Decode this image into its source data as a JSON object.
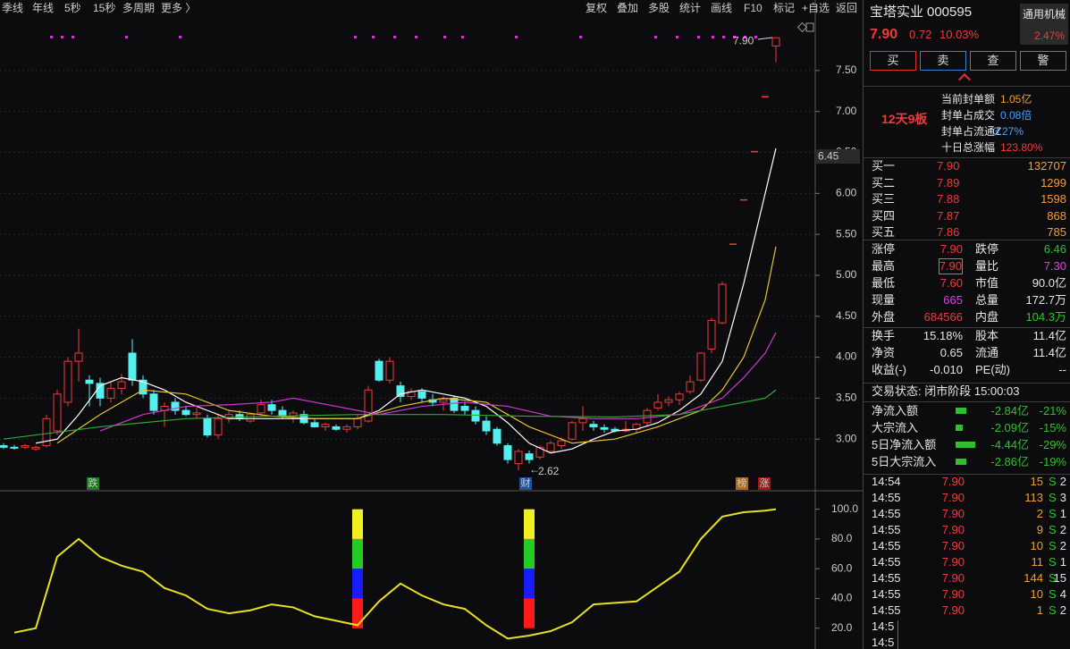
{
  "toolbar": {
    "left": [
      "季线",
      "年线",
      "5秒",
      "15秒",
      "多周期",
      "更多 〉"
    ],
    "right": [
      "复权",
      "叠加",
      "多股",
      "统计",
      "画线",
      "F10",
      "标记",
      "+自选",
      "返回"
    ]
  },
  "chart_data": [
    {
      "type": "candlestick",
      "ylim": [
        2.38,
        7.99
      ],
      "yticks": [
        {
          "value": 3,
          "label": "3.00"
        },
        {
          "value": 3.5,
          "label": "3.50"
        },
        {
          "value": 4,
          "label": "4.00"
        },
        {
          "value": 4.5,
          "label": "4.50"
        },
        {
          "value": 5,
          "label": "5.00"
        },
        {
          "value": 5.5,
          "label": "5.50"
        },
        {
          "value": 6,
          "label": "6.00"
        },
        {
          "value": 6.5,
          "label": "6.50"
        },
        {
          "value": 7,
          "label": "7.00"
        },
        {
          "value": 7.5,
          "label": "7.50"
        }
      ],
      "grid": true,
      "up_color": "#f03a3a",
      "down_color": "#54f0f0",
      "candles": [
        [
          2.92,
          2.95,
          2.88,
          2.9
        ],
        [
          2.9,
          2.93,
          2.87,
          2.89
        ],
        [
          2.9,
          2.94,
          2.88,
          2.92
        ],
        [
          2.88,
          2.92,
          2.86,
          2.9
        ],
        [
          2.92,
          3.3,
          2.9,
          3.25
        ],
        [
          3.1,
          3.6,
          3.05,
          3.55
        ],
        [
          3.45,
          4,
          3.4,
          3.95
        ],
        [
          3.95,
          4.35,
          3.7,
          4.05
        ],
        [
          3.72,
          3.78,
          3.4,
          3.68
        ],
        [
          3.68,
          3.75,
          3.4,
          3.5
        ],
        [
          3.5,
          3.7,
          3.45,
          3.62
        ],
        [
          3.62,
          3.8,
          3.55,
          3.7
        ],
        [
          4.05,
          4.22,
          3.65,
          3.72
        ],
        [
          3.72,
          3.78,
          3.5,
          3.55
        ],
        [
          3.55,
          3.6,
          3.3,
          3.35
        ],
        [
          3.35,
          3.45,
          3.15,
          3.4
        ],
        [
          3.45,
          3.5,
          3.3,
          3.35
        ],
        [
          3.35,
          3.4,
          3.28,
          3.3
        ],
        [
          3.3,
          3.38,
          3.25,
          3.32
        ],
        [
          3.25,
          3.3,
          3.02,
          3.05
        ],
        [
          3.05,
          3.3,
          3,
          3.25
        ],
        [
          3.25,
          3.35,
          3.2,
          3.3
        ],
        [
          3.3,
          3.35,
          3.22,
          3.25
        ],
        [
          3.22,
          3.32,
          3.2,
          3.3
        ],
        [
          3.32,
          3.48,
          3.28,
          3.42
        ],
        [
          3.42,
          3.48,
          3.3,
          3.35
        ],
        [
          3.35,
          3.4,
          3.25,
          3.28
        ],
        [
          3.28,
          3.35,
          3.2,
          3.32
        ],
        [
          3.3,
          3.35,
          3.18,
          3.2
        ],
        [
          3.2,
          3.25,
          3.14,
          3.15
        ],
        [
          3.15,
          3.2,
          3.1,
          3.18
        ],
        [
          3.15,
          3.18,
          3.1,
          3.12
        ],
        [
          3.12,
          3.18,
          3.08,
          3.15
        ],
        [
          3.15,
          3.3,
          3.12,
          3.25
        ],
        [
          3.22,
          3.65,
          3.2,
          3.6
        ],
        [
          3.95,
          3.98,
          3.7,
          3.72
        ],
        [
          3.72,
          4,
          3.68,
          3.95
        ],
        [
          3.65,
          3.7,
          3.45,
          3.52
        ],
        [
          3.52,
          3.62,
          3.48,
          3.58
        ],
        [
          3.58,
          3.62,
          3.45,
          3.5
        ],
        [
          3.48,
          3.55,
          3.4,
          3.45
        ],
        [
          3.45,
          3.52,
          3.35,
          3.48
        ],
        [
          3.5,
          3.52,
          3.32,
          3.35
        ],
        [
          3.4,
          3.45,
          3.3,
          3.35
        ],
        [
          3.35,
          3.4,
          3.18,
          3.22
        ],
        [
          3.22,
          3.28,
          3.05,
          3.1
        ],
        [
          3.12,
          3.15,
          2.92,
          2.95
        ],
        [
          2.92,
          2.95,
          2.7,
          2.75
        ],
        [
          2.7,
          2.88,
          2.62,
          2.85
        ],
        [
          2.82,
          2.86,
          2.7,
          2.75
        ],
        [
          2.78,
          2.92,
          2.75,
          2.9
        ],
        [
          2.85,
          2.98,
          2.82,
          2.95
        ],
        [
          2.92,
          3.02,
          2.88,
          2.98
        ],
        [
          3,
          3.22,
          2.98,
          3.2
        ],
        [
          3.2,
          3.4,
          3.1,
          3.25
        ],
        [
          3.18,
          3.22,
          3.1,
          3.15
        ],
        [
          3.14,
          3.18,
          3.08,
          3.12
        ],
        [
          3.12,
          3.15,
          3.08,
          3.1
        ],
        [
          3.1,
          3.22,
          3.08,
          3.12
        ],
        [
          3.12,
          3.2,
          3.08,
          3.18
        ],
        [
          3.2,
          3.38,
          3.15,
          3.35
        ],
        [
          3.38,
          3.55,
          3.35,
          3.45
        ],
        [
          3.45,
          3.52,
          3.4,
          3.48
        ],
        [
          3.48,
          3.58,
          3.42,
          3.55
        ],
        [
          3.58,
          3.78,
          3.55,
          3.7
        ],
        [
          3.72,
          4.06,
          3.7,
          4.05
        ],
        [
          4.1,
          4.48,
          4.05,
          4.45
        ],
        [
          4.42,
          4.92,
          4.4,
          4.89
        ],
        [
          5.38,
          5.38,
          5.38,
          5.38
        ],
        [
          5.92,
          5.92,
          5.92,
          5.92
        ],
        [
          6.51,
          6.51,
          6.51,
          6.51
        ],
        [
          7.18,
          7.18,
          7.18,
          7.18
        ],
        [
          7.8,
          7.9,
          7.6,
          7.9
        ]
      ],
      "series": [
        {
          "color": "#ffffff",
          "x": [
            3,
            5,
            7,
            9,
            11,
            13,
            15,
            17,
            19,
            21,
            25,
            29,
            33,
            35,
            37,
            39,
            41,
            43,
            45,
            47,
            49,
            51,
            53,
            55,
            57,
            59,
            61,
            63,
            65,
            67,
            69,
            71,
            72
          ],
          "values": [
            2.95,
            3,
            3.3,
            3.65,
            3.75,
            3.7,
            3.6,
            3.45,
            3.35,
            3.25,
            3.25,
            3.25,
            3.25,
            3.35,
            3.55,
            3.6,
            3.55,
            3.5,
            3.4,
            3.2,
            2.95,
            2.83,
            2.88,
            3,
            3.1,
            3.12,
            3.2,
            3.35,
            3.55,
            3.95,
            4.9,
            6,
            6.55
          ]
        },
        {
          "color": "#e6c42a",
          "x": [
            5,
            9,
            13,
            17,
            21,
            25,
            29,
            33,
            37,
            41,
            45,
            49,
            53,
            57,
            61,
            65,
            67,
            69,
            71,
            72
          ],
          "values": [
            2.95,
            3.3,
            3.6,
            3.55,
            3.35,
            3.28,
            3.25,
            3.25,
            3.4,
            3.5,
            3.45,
            3.15,
            2.95,
            3,
            3.15,
            3.35,
            3.6,
            4,
            4.7,
            5.35
          ]
        },
        {
          "color": "#d336d3",
          "x": [
            9,
            13,
            17,
            21,
            25,
            27,
            31,
            35,
            39,
            43,
            47,
            51,
            55,
            59,
            63,
            67,
            69,
            71,
            72
          ],
          "values": [
            3.1,
            3.3,
            3.4,
            3.42,
            3.45,
            3.5,
            3.4,
            3.3,
            3.4,
            3.45,
            3.4,
            3.28,
            3.25,
            3.25,
            3.3,
            3.5,
            3.75,
            4.05,
            4.3
          ]
        },
        {
          "color": "#2faa32",
          "x": [
            0,
            9,
            17,
            25,
            33,
            41,
            49,
            57,
            63,
            67,
            71,
            72
          ],
          "values": [
            3,
            3.15,
            3.25,
            3.28,
            3.3,
            3.3,
            3.28,
            3.27,
            3.3,
            3.4,
            3.5,
            3.6
          ]
        }
      ],
      "high_label": {
        "value": 7.9,
        "label": "7.90"
      },
      "low_label": {
        "value": 2.62,
        "label": "2.62"
      },
      "price_tag": {
        "value": 6.45,
        "label": "6.45"
      },
      "badges": [
        "跌",
        "财",
        "榜",
        "涨"
      ]
    },
    {
      "type": "line",
      "ylim": [
        6,
        110
      ],
      "yticks": [
        {
          "value": 20,
          "label": "20.0"
        },
        {
          "value": 40,
          "label": "40.0"
        },
        {
          "value": 60,
          "label": "60.0"
        },
        {
          "value": 80,
          "label": "80.0"
        },
        {
          "value": 100,
          "label": "100.0"
        }
      ],
      "color": "#e8e020",
      "x": [
        1,
        3,
        5,
        7,
        9,
        11,
        13,
        15,
        17,
        19,
        21,
        23,
        25,
        27,
        29,
        31,
        33,
        35,
        37,
        39,
        41,
        43,
        45,
        47,
        49,
        51,
        53,
        55,
        57,
        59,
        61,
        63,
        65,
        67,
        69,
        71,
        72
      ],
      "values": [
        17,
        20,
        68,
        80,
        68,
        62,
        58,
        47,
        42,
        33,
        30,
        32,
        36,
        34,
        28,
        25,
        22,
        38,
        50,
        42,
        36,
        33,
        22,
        13,
        15,
        18,
        24,
        36,
        37,
        38,
        48,
        58,
        80,
        95,
        98,
        99,
        100
      ],
      "bars": [
        {
          "x": 33,
          "base": 20,
          "segments": [
            20,
            20,
            20,
            20
          ]
        },
        {
          "x": 49,
          "base": 20,
          "segments": [
            20,
            20,
            20,
            20
          ]
        }
      ],
      "segment_colors": [
        "#ff1a1a",
        "#1a1aff",
        "#22cc22",
        "#f0f020"
      ]
    }
  ],
  "quote": {
    "name": "宝塔实业",
    "code": "000595",
    "sector": "通用机械",
    "sector_change": "2.47%",
    "price": "7.90",
    "change": "0.72",
    "change_pct": "10.03%"
  },
  "buttons": [
    "买",
    "卖",
    "查",
    "警"
  ],
  "limit": {
    "boards": "12天9板",
    "rows": [
      [
        "当前封单额",
        "1.05亿"
      ],
      [
        "封单占成交",
        "0.08倍"
      ],
      [
        "封单占流通Z",
        "3.27%"
      ],
      [
        "十日总涨幅",
        "123.80%"
      ]
    ]
  },
  "order_book": [
    [
      "买一",
      "7.90",
      "132707"
    ],
    [
      "买二",
      "7.89",
      "1299"
    ],
    [
      "买三",
      "7.88",
      "1598"
    ],
    [
      "买四",
      "7.87",
      "868"
    ],
    [
      "买五",
      "7.86",
      "785"
    ]
  ],
  "stats": [
    [
      "涨停",
      "7.90",
      "跌停",
      "6.46"
    ],
    [
      "最高",
      "7.90",
      "量比",
      "7.30"
    ],
    [
      "最低",
      "7.60",
      "市值",
      "90.0亿"
    ],
    [
      "现量",
      "665",
      "总量",
      "172.7万"
    ],
    [
      "外盘",
      "684566",
      "内盘",
      "104.3万"
    ]
  ],
  "fundamentals": [
    [
      "换手",
      "15.18%",
      "股本",
      "11.4亿"
    ],
    [
      "净资",
      "0.65",
      "流通",
      "11.4亿"
    ],
    [
      "收益(-)",
      "-0.010",
      "PE(动)",
      "--"
    ]
  ],
  "status": "交易状态: 闭市阶段 15:00:03",
  "flows": [
    [
      "净流入额",
      "-2.84亿",
      "-21%"
    ],
    [
      "大宗流入",
      "-2.09亿",
      "-15%"
    ],
    [
      "5日净流入额",
      "-4.44亿",
      "-29%"
    ],
    [
      "5日大宗流入",
      "-2.86亿",
      "-19%"
    ]
  ],
  "trades": [
    [
      "14:54",
      "7.90",
      "15",
      "S",
      "2"
    ],
    [
      "14:55",
      "7.90",
      "113",
      "S",
      "3"
    ],
    [
      "14:55",
      "7.90",
      "2",
      "S",
      "1"
    ],
    [
      "14:55",
      "7.90",
      "9",
      "S",
      "2"
    ],
    [
      "14:55",
      "7.90",
      "10",
      "S",
      "2"
    ],
    [
      "14:55",
      "7.90",
      "11",
      "S",
      "1"
    ],
    [
      "14:55",
      "7.90",
      "144",
      "S",
      "15"
    ],
    [
      "14:55",
      "7.90",
      "10",
      "S",
      "4"
    ],
    [
      "14:55",
      "7.90",
      "1",
      "S",
      "2"
    ],
    [
      "14:5"
    ],
    [
      "14:5"
    ]
  ]
}
